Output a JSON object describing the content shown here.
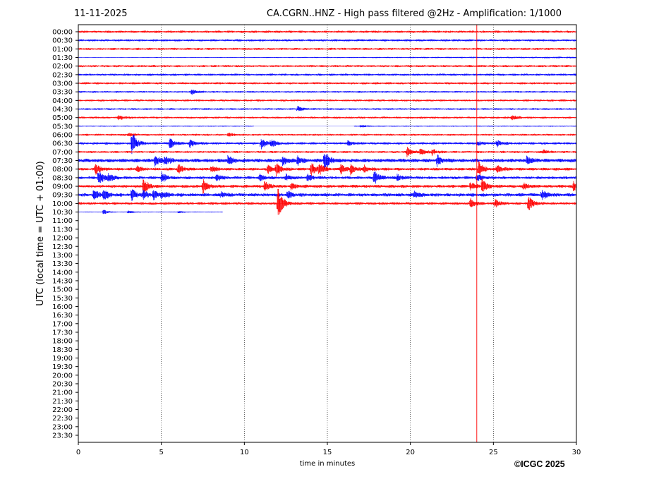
{
  "date": "11-11-2025",
  "title": "CA.CGRN..HNZ - High pass filtered @2Hz - Amplification: 1/1000",
  "copyright": "©ICGC 2025",
  "chart_data": {
    "type": "line",
    "subtype": "helicorder",
    "xlabel": "time in minutes",
    "ylabel": "UTC (local time = UTC + 01:00)",
    "xlim": [
      0,
      30
    ],
    "xticks": [
      0,
      5,
      10,
      15,
      20,
      25,
      30
    ],
    "grid": "vertical dotted at each x tick",
    "colors": [
      "#ff0000",
      "#0000ff"
    ],
    "rows": [
      {
        "label": "00:00",
        "noise": 0.14,
        "events": []
      },
      {
        "label": "00:30",
        "noise": 0.13,
        "events": []
      },
      {
        "label": "01:00",
        "noise": 0.13,
        "events": []
      },
      {
        "label": "01:30",
        "noise": 0.1,
        "start_noise": 0.03,
        "events": []
      },
      {
        "label": "02:00",
        "noise": 0.13,
        "events": []
      },
      {
        "label": "02:30",
        "noise": 0.13,
        "events": []
      },
      {
        "label": "03:00",
        "noise": 0.13,
        "events": []
      },
      {
        "label": "03:30",
        "noise": 0.11,
        "events": [
          [
            6.8,
            0.3
          ]
        ]
      },
      {
        "label": "04:00",
        "noise": 0.12,
        "events": []
      },
      {
        "label": "04:30",
        "noise": 0.11,
        "events": [
          [
            13.2,
            0.35
          ]
        ]
      },
      {
        "label": "05:00",
        "noise": 0.12,
        "events": [
          [
            2.4,
            0.35
          ],
          [
            26.1,
            0.3
          ]
        ]
      },
      {
        "label": "05:30",
        "noise": 0.06,
        "gap": [
          10.6,
          16.6
        ],
        "events": [
          [
            17.0,
            0.2
          ]
        ]
      },
      {
        "label": "06:00",
        "noise": 0.12,
        "events": [
          [
            3.0,
            0.2
          ],
          [
            9.0,
            0.2
          ]
        ]
      },
      {
        "label": "06:30",
        "noise": 0.14,
        "events": [
          [
            3.2,
            1.6
          ],
          [
            5.5,
            0.7
          ],
          [
            6.7,
            0.5
          ],
          [
            11.0,
            0.7
          ],
          [
            11.6,
            0.5
          ],
          [
            16.2,
            0.3
          ],
          [
            24.0,
            0.3
          ],
          [
            25.2,
            0.4
          ]
        ]
      },
      {
        "label": "07:00",
        "noise": 0.13,
        "events": [
          [
            19.8,
            0.55
          ],
          [
            20.6,
            0.4
          ],
          [
            21.3,
            0.35
          ],
          [
            28.0,
            0.25
          ]
        ]
      },
      {
        "label": "07:30",
        "noise": 0.22,
        "events": [
          [
            4.6,
            0.6
          ],
          [
            5.2,
            0.5
          ],
          [
            9.0,
            0.5
          ],
          [
            12.3,
            0.5
          ],
          [
            13.2,
            0.5
          ],
          [
            14.8,
            1.2
          ],
          [
            21.6,
            0.6
          ],
          [
            27.0,
            0.4
          ]
        ]
      },
      {
        "label": "08:00",
        "noise": 0.17,
        "events": [
          [
            1.0,
            0.7
          ],
          [
            3.5,
            0.4
          ],
          [
            6.0,
            0.6
          ],
          [
            8.0,
            0.4
          ],
          [
            11.4,
            0.6
          ],
          [
            11.9,
            0.7
          ],
          [
            14.0,
            0.8
          ],
          [
            14.5,
            0.7
          ],
          [
            15.8,
            0.6
          ],
          [
            16.4,
            0.5
          ],
          [
            17.2,
            0.4
          ],
          [
            24.1,
            0.9
          ],
          [
            25.2,
            0.5
          ]
        ]
      },
      {
        "label": "08:30",
        "noise": 0.17,
        "events": [
          [
            1.2,
            0.9
          ],
          [
            1.8,
            0.5
          ],
          [
            5.0,
            0.6
          ],
          [
            8.3,
            0.5
          ],
          [
            10.9,
            0.4
          ],
          [
            12.5,
            0.4
          ],
          [
            13.8,
            0.4
          ],
          [
            17.8,
            0.9
          ],
          [
            19.2,
            0.4
          ],
          [
            24.0,
            0.4
          ]
        ]
      },
      {
        "label": "09:00",
        "noise": 0.18,
        "events": [
          [
            3.9,
            0.9
          ],
          [
            7.5,
            0.9
          ],
          [
            11.2,
            0.6
          ],
          [
            12.8,
            0.4
          ],
          [
            23.6,
            0.5
          ],
          [
            24.3,
            0.8
          ],
          [
            26.8,
            0.4
          ],
          [
            29.8,
            0.5
          ]
        ]
      },
      {
        "label": "09:30",
        "noise": 0.2,
        "events": [
          [
            0.9,
            0.7
          ],
          [
            1.5,
            0.6
          ],
          [
            3.2,
            0.7
          ],
          [
            3.9,
            0.5
          ],
          [
            4.5,
            0.5
          ],
          [
            5.0,
            0.4
          ],
          [
            8.6,
            0.3
          ],
          [
            12.6,
            0.4
          ],
          [
            20.2,
            0.4
          ],
          [
            27.9,
            0.6
          ]
        ]
      },
      {
        "label": "10:00",
        "noise": 0.16,
        "events": [
          [
            12.0,
            2.0
          ],
          [
            23.6,
            0.6
          ],
          [
            25.1,
            0.5
          ],
          [
            27.1,
            0.9
          ]
        ]
      },
      {
        "label": "10:30",
        "noise": 0.05,
        "end": 8.7,
        "events": [
          [
            1.5,
            0.3
          ],
          [
            3.0,
            0.2
          ],
          [
            6.0,
            0.15
          ]
        ]
      },
      {
        "label": "11:00"
      },
      {
        "label": "11:30"
      },
      {
        "label": "12:00"
      },
      {
        "label": "12:30"
      },
      {
        "label": "13:00"
      },
      {
        "label": "13:30"
      },
      {
        "label": "14:00"
      },
      {
        "label": "14:30"
      },
      {
        "label": "15:00"
      },
      {
        "label": "15:30"
      },
      {
        "label": "16:00"
      },
      {
        "label": "16:30"
      },
      {
        "label": "17:00"
      },
      {
        "label": "17:30"
      },
      {
        "label": "18:00"
      },
      {
        "label": "18:30"
      },
      {
        "label": "19:00"
      },
      {
        "label": "19:30"
      },
      {
        "label": "20:00"
      },
      {
        "label": "20:30"
      },
      {
        "label": "21:00"
      },
      {
        "label": "21:30"
      },
      {
        "label": "22:00"
      },
      {
        "label": "22:30"
      },
      {
        "label": "23:00"
      },
      {
        "label": "23:30"
      }
    ],
    "spikes": [
      {
        "time": 24.0,
        "color": "#ff0000",
        "from_row": "00:00",
        "extent": "full"
      }
    ]
  }
}
